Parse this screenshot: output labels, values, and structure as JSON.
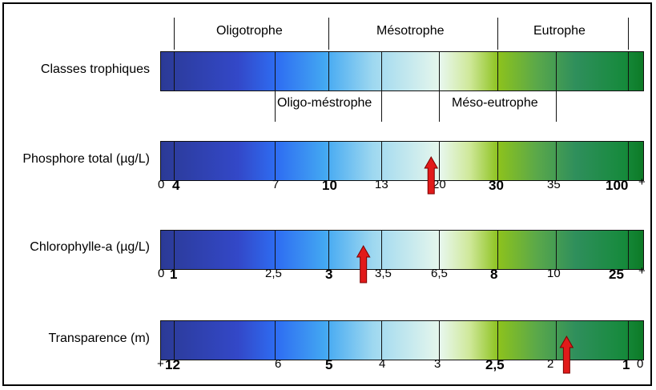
{
  "header": {
    "classes_top": [
      "Oligotrophe",
      "Mésotrophe",
      "Eutrophe"
    ],
    "classes_mid": [
      "Oligo-méstrophe",
      "Méso-eutrophe"
    ]
  },
  "rows": [
    {
      "label": "Classes trophiques",
      "ticks": [],
      "marker_position": null
    },
    {
      "label": "Phosphore total (µg/L)",
      "ticks": [
        "0",
        "4",
        "7",
        "10",
        "13",
        "20",
        "30",
        "35",
        "100",
        "+"
      ],
      "bold": [
        "4",
        "10",
        "30",
        "100"
      ],
      "marker_position": 0.56,
      "marker_value": "20"
    },
    {
      "label": "Chlorophylle-a (µg/L)",
      "ticks": [
        "0",
        "1",
        "2,5",
        "3",
        "3,5",
        "6,5",
        "8",
        "10",
        "25",
        "+"
      ],
      "bold": [
        "1",
        "3",
        "8",
        "25"
      ],
      "marker_position": 0.42,
      "marker_value": "3,5"
    },
    {
      "label": "Transparence (m)",
      "ticks": [
        "+",
        "12",
        "6",
        "5",
        "4",
        "3",
        "2,5",
        "2",
        "1",
        "0"
      ],
      "bold": [
        "12",
        "5",
        "2,5",
        "1"
      ],
      "marker_position": 0.84,
      "marker_value": "2"
    }
  ],
  "colors": {
    "marker_fill": "#e11a1a",
    "marker_stroke": "#7a0000"
  }
}
